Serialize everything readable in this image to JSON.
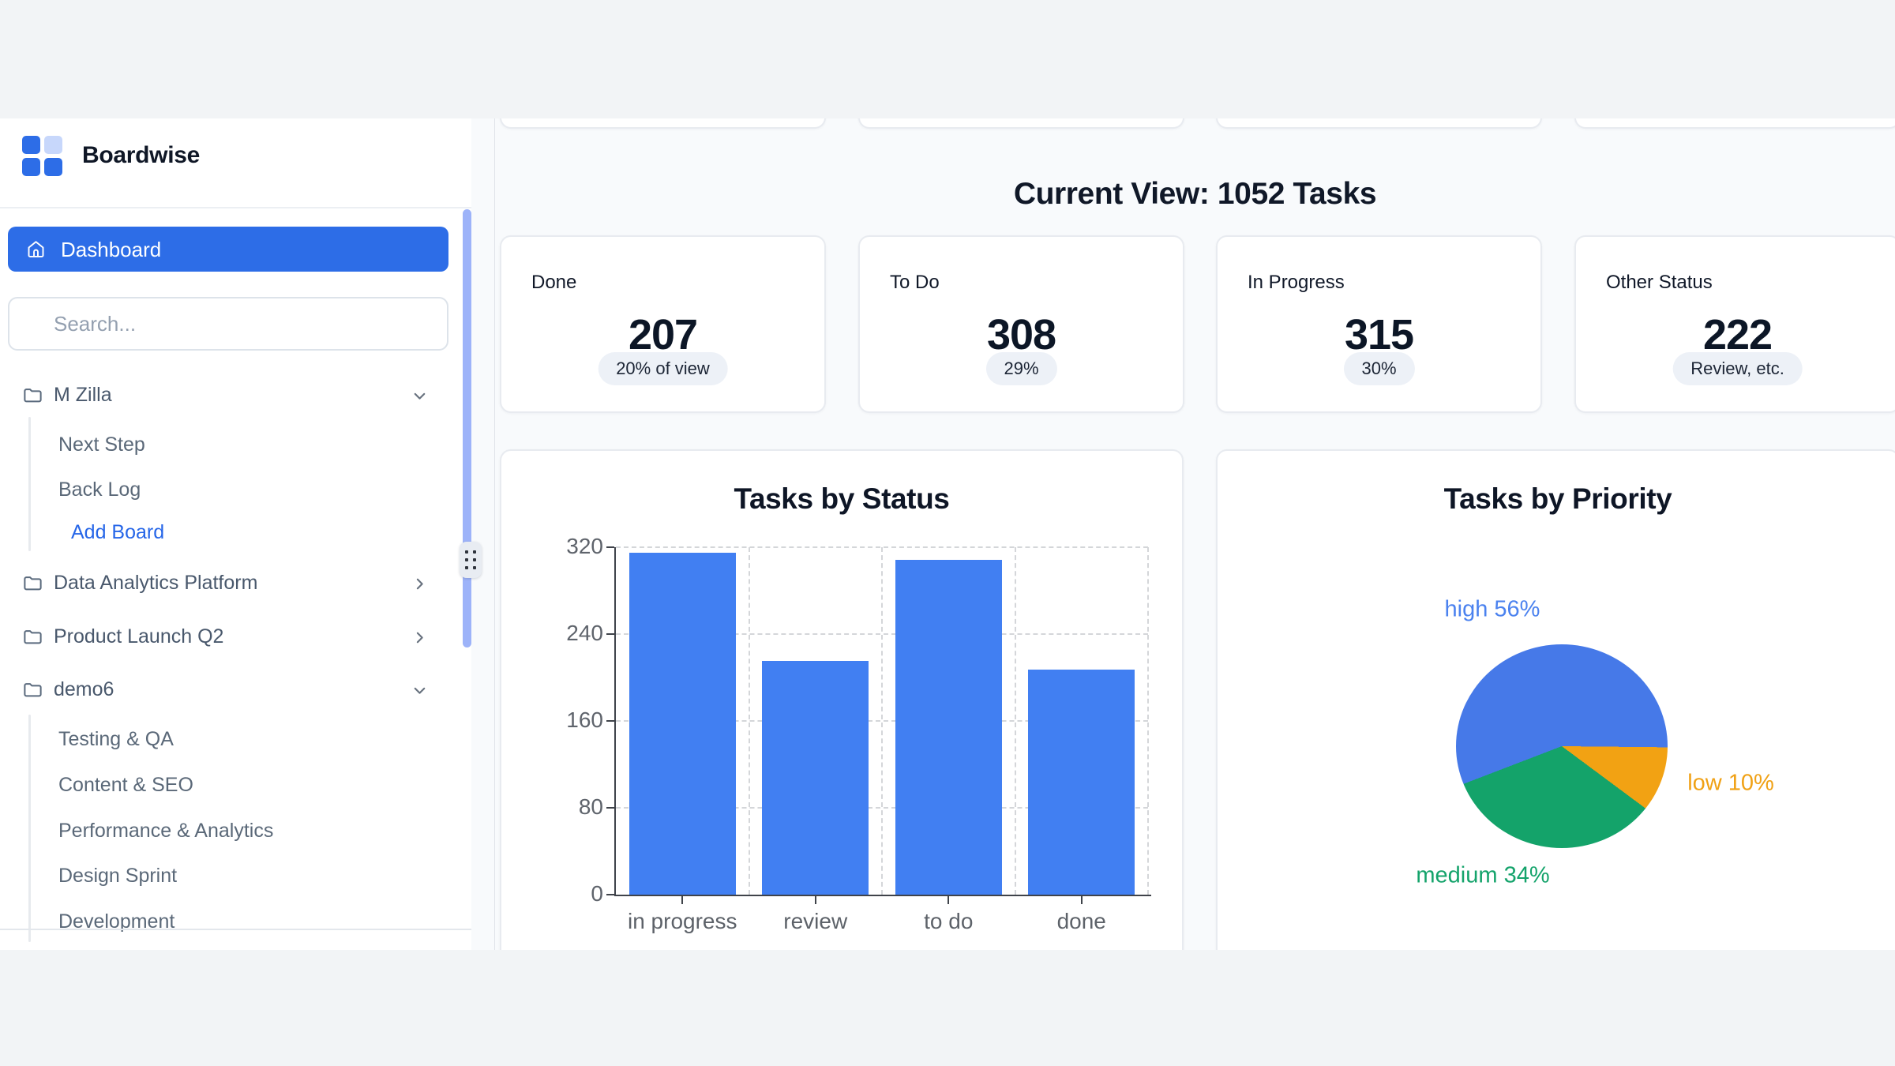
{
  "brand": {
    "name": "Boardwise"
  },
  "colors": {
    "accent_blue": "#2d6de7",
    "bar_blue": "#417ff2",
    "pie_blue": "#4679e8",
    "pie_green": "#14a36a",
    "pie_orange": "#f2a213",
    "badge_bg": "#edf1f7"
  },
  "sidebar": {
    "dashboard_label": "Dashboard",
    "search_placeholder": "Search...",
    "folders": [
      {
        "label": "M Zilla",
        "expanded": true
      },
      {
        "label": "Data Analytics Platform",
        "expanded": false
      },
      {
        "label": "Product Launch Q2",
        "expanded": false
      },
      {
        "label": "demo6",
        "expanded": true
      }
    ],
    "mzilla_children": [
      "Next Step",
      "Back Log"
    ],
    "add_board_label": "Add Board",
    "demo6_children": [
      "Testing & QA",
      "Content & SEO",
      "Performance & Analytics",
      "Design Sprint",
      "Development"
    ]
  },
  "main": {
    "heading": "Current View: 1052 Tasks",
    "stats": [
      {
        "label": "Done",
        "value": "207",
        "badge": "20% of view"
      },
      {
        "label": "To Do",
        "value": "308",
        "badge": "29%"
      },
      {
        "label": "In Progress",
        "value": "315",
        "badge": "30%"
      },
      {
        "label": "Other Status",
        "value": "222",
        "badge": "Review, etc."
      }
    ]
  },
  "chart_data": [
    {
      "type": "bar",
      "title": "Tasks by Status",
      "categories": [
        "in progress",
        "review",
        "to do",
        "done"
      ],
      "values": [
        315,
        215,
        308,
        207
      ],
      "xlabel": "",
      "ylabel": "",
      "ylim": [
        0,
        320
      ],
      "yticks": [
        0,
        80,
        160,
        240,
        320
      ],
      "grid": "dashed",
      "bar_color": "#417ff2",
      "legend": "none"
    },
    {
      "type": "pie",
      "title": "Tasks by Priority",
      "slices": [
        {
          "label": "high",
          "pct": 56,
          "color": "#4679e8",
          "label_color": "#4b82ef"
        },
        {
          "label": "low",
          "pct": 10,
          "color": "#f2a213",
          "label_color": "#f0a115"
        },
        {
          "label": "medium",
          "pct": 34,
          "color": "#14a36a",
          "label_color": "#14a36b"
        }
      ],
      "labels": [
        "high 56%",
        "low 10%",
        "medium 34%"
      ],
      "legend": "labels-around-pie"
    }
  ]
}
